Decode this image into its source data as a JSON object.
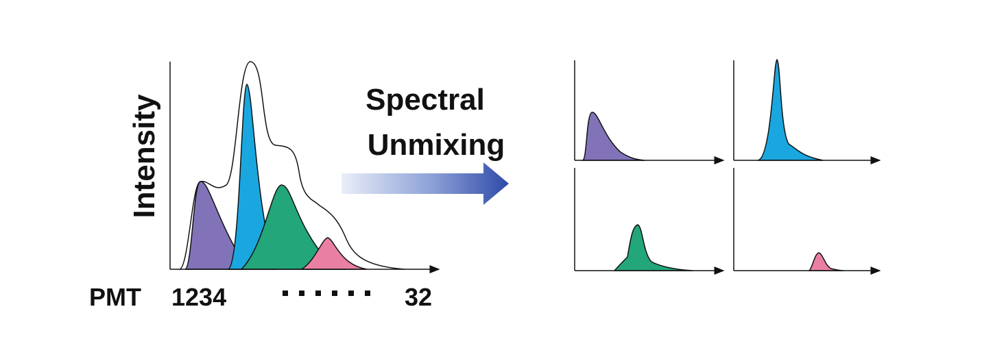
{
  "left_panel": {
    "y_label": "Intensity",
    "x_label": "PMT",
    "x_start": "1234",
    "x_end": "32"
  },
  "arrow_label": [
    "Spectral",
    "Unmixing"
  ]
}
